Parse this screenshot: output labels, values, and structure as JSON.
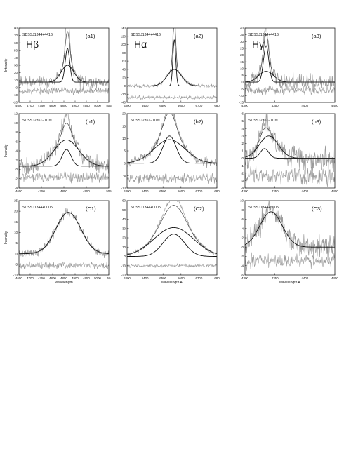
{
  "chart_data": [
    {
      "id": "a1",
      "type": "line",
      "panel_label": "(a1)",
      "object": "SDSSJ1344+4416",
      "line_label": "Hβ",
      "ylabel": "Intensity",
      "xlabel": "",
      "xlim": [
        4650,
        5050
      ],
      "ylim": [
        -30,
        80
      ],
      "xticks": [
        "4650",
        "4700",
        "4750",
        "4800",
        "4850",
        "4900",
        "4950",
        "5000",
        "505"
      ],
      "yticks": [
        "80",
        "70",
        "60",
        "50",
        "40",
        "30",
        "20",
        "10",
        "0",
        "-10",
        "-20"
      ],
      "components": [
        {
          "center": 4866,
          "sigma": 10,
          "amp": 50
        },
        {
          "center": 4866,
          "sigma": 28,
          "amp": 25
        }
      ],
      "data_extra": [
        {
          "center": 4866,
          "sigma": 8,
          "amp": 25
        }
      ],
      "data_noise": 6,
      "resid_level": -13,
      "resid_noise": 4,
      "seed": 11
    },
    {
      "id": "a2",
      "type": "line",
      "panel_label": "(a2)",
      "object": "SDSSJ1344+4416",
      "line_label": "Hα",
      "ylabel": "",
      "xlabel": "",
      "xlim": [
        6300,
        6800
      ],
      "ylim": [
        -40,
        140
      ],
      "xticks": [
        "6300",
        "6400",
        "6500",
        "6600",
        "6700",
        "680"
      ],
      "yticks": [
        "140",
        "120",
        "100",
        "80",
        "60",
        "40",
        "20",
        "0",
        "-20",
        "-40"
      ],
      "components": [
        {
          "center": 6563,
          "sigma": 8,
          "amp": 112
        },
        {
          "center": 6563,
          "sigma": 40,
          "amp": 40
        }
      ],
      "data_extra": [
        {
          "center": 6563,
          "sigma": 6,
          "amp": 30
        }
      ],
      "data_noise": 3,
      "resid_level": -28,
      "resid_noise": 3,
      "seed": 23
    },
    {
      "id": "a3",
      "type": "line",
      "panel_label": "(a3)",
      "object": "SDSSJ1344+4416",
      "line_label": "Hγ",
      "ylabel": "",
      "xlabel": "",
      "xlim": [
        4300,
        4470
      ],
      "ylim": [
        -15,
        40
      ],
      "xticks": [
        "4300",
        "4350",
        "4400",
        "4450"
      ],
      "yticks": [
        "40",
        "35",
        "30",
        "25",
        "20",
        "15",
        "10",
        "5",
        "0",
        "-5",
        "-10",
        "-15"
      ],
      "components": [
        {
          "center": 4340,
          "sigma": 5,
          "amp": 27
        },
        {
          "center": 4340,
          "sigma": 14,
          "amp": 8
        }
      ],
      "data_extra": [
        {
          "center": 4340,
          "sigma": 4,
          "amp": 5
        }
      ],
      "data_noise": 4,
      "resid_level": -6,
      "resid_noise": 2.5,
      "seed": 37
    },
    {
      "id": "b1",
      "type": "line",
      "panel_label": "(b1)",
      "object": "SDSSJ2351-0109",
      "ylabel": "Intensity",
      "xlabel": "",
      "xlim": [
        4650,
        5050
      ],
      "ylim": [
        -5,
        12
      ],
      "xticks": [
        "4650",
        "4750",
        "4850",
        "4950",
        "505"
      ],
      "yticks": [
        "12",
        "10",
        "8",
        "6",
        "4",
        "2",
        "0",
        "-2",
        "-4"
      ],
      "components": [
        {
          "center": 4862,
          "sigma": 20,
          "amp": 3.8
        },
        {
          "center": 4862,
          "sigma": 55,
          "amp": 6
        }
      ],
      "data_extra": [
        {
          "center": 4862,
          "sigma": 15,
          "amp": 2
        }
      ],
      "data_noise": 1.3,
      "resid_level": -2.5,
      "resid_noise": 0.8,
      "seed": 41
    },
    {
      "id": "b2",
      "type": "line",
      "panel_label": "(b2)",
      "object": "SDSSJ2351-0109",
      "ylabel": "",
      "xlabel": "",
      "xlim": [
        6300,
        6850
      ],
      "ylim": [
        -10,
        20
      ],
      "xticks": [
        "6300",
        "6400",
        "6500",
        "6600",
        "6700",
        "680"
      ],
      "yticks": [
        "20",
        "15",
        "10",
        "5",
        "0",
        "-5",
        "-10"
      ],
      "components": [
        {
          "center": 6560,
          "sigma": 40,
          "amp": 11
        },
        {
          "center": 6560,
          "sigma": 95,
          "amp": 9.5
        }
      ],
      "data_extra": [
        {
          "center": 6560,
          "sigma": 25,
          "amp": 3
        }
      ],
      "data_noise": 1.3,
      "resid_level": -6,
      "resid_noise": 1.3,
      "seed": 53
    },
    {
      "id": "b3",
      "type": "line",
      "panel_label": "(b3)",
      "object": "SDSSJ2351-0109",
      "ylabel": "",
      "xlabel": "",
      "xlim": [
        4300,
        4470
      ],
      "ylim": [
        -4,
        6
      ],
      "xticks": [
        "4300",
        "4350",
        "4400",
        "4450"
      ],
      "yticks": [
        "6",
        "5",
        "4",
        "3",
        "2",
        "1",
        "0",
        "-1",
        "-2",
        "-3",
        "-4"
      ],
      "components": [
        {
          "center": 4337,
          "sigma": 8,
          "amp": 1.3
        },
        {
          "center": 4345,
          "sigma": 18,
          "amp": 3
        }
      ],
      "data_extra": [
        {
          "center": 4340,
          "sigma": 8,
          "amp": 0.8
        }
      ],
      "data_noise": 1.1,
      "resid_level": -2.4,
      "resid_noise": 0.8,
      "seed": 67
    },
    {
      "id": "c1",
      "type": "line",
      "panel_label": "(C1)",
      "object": "SDSSJ1344+0005",
      "ylabel": "Intensity",
      "xlabel": "wavelength",
      "xlim": [
        4650,
        5050
      ],
      "ylim": [
        -10,
        25
      ],
      "xticks": [
        "4650",
        "4700",
        "4750",
        "4800",
        "4850",
        "4900",
        "4950",
        "5000",
        "50"
      ],
      "yticks": [
        "25",
        "20",
        "15",
        "10",
        "5",
        "0",
        "-5",
        "-10"
      ],
      "components": [
        {
          "center": 4870,
          "sigma": 55,
          "amp": 19.5
        }
      ],
      "data_extra": [],
      "data_noise": 1.3,
      "resid_level": -5.5,
      "resid_noise": 1.2,
      "seed": 71
    },
    {
      "id": "c2",
      "type": "line",
      "panel_label": "(C2)",
      "object": "SDSSJ1344+0005",
      "ylabel": "",
      "xlabel": "wavelength A",
      "xlim": [
        6300,
        6800
      ],
      "ylim": [
        -20,
        60
      ],
      "xticks": [
        "6300",
        "6400",
        "6500",
        "6600",
        "6700",
        "680"
      ],
      "yticks": [
        "60",
        "50",
        "40",
        "30",
        "20",
        "10",
        "0",
        "-10",
        "-20"
      ],
      "components": [
        {
          "center": 6560,
          "sigma": 60,
          "amp": 24
        },
        {
          "center": 6560,
          "sigma": 110,
          "amp": 31
        }
      ],
      "data_extra": [
        {
          "center": 6560,
          "sigma": 45,
          "amp": 8
        }
      ],
      "data_noise": 1.5,
      "resid_level": -10,
      "resid_noise": 1.2,
      "seed": 83
    },
    {
      "id": "c3",
      "type": "line",
      "panel_label": "(C3)",
      "object": "SDSSJ1344+0005",
      "ylabel": "",
      "xlabel": "wavelength A",
      "xlim": [
        4280,
        4480
      ],
      "ylim": [
        -6,
        10
      ],
      "xticks": [
        "4300",
        "4350",
        "4400",
        "4450"
      ],
      "yticks": [
        "10",
        "8",
        "6",
        "4",
        "2",
        "0",
        "-2",
        "-4",
        "-6"
      ],
      "components": [
        {
          "center": 4338,
          "sigma": 25,
          "amp": 7.6
        }
      ],
      "data_extra": [],
      "data_noise": 1.7,
      "resid_level": -3,
      "resid_noise": 1,
      "seed": 97
    }
  ]
}
